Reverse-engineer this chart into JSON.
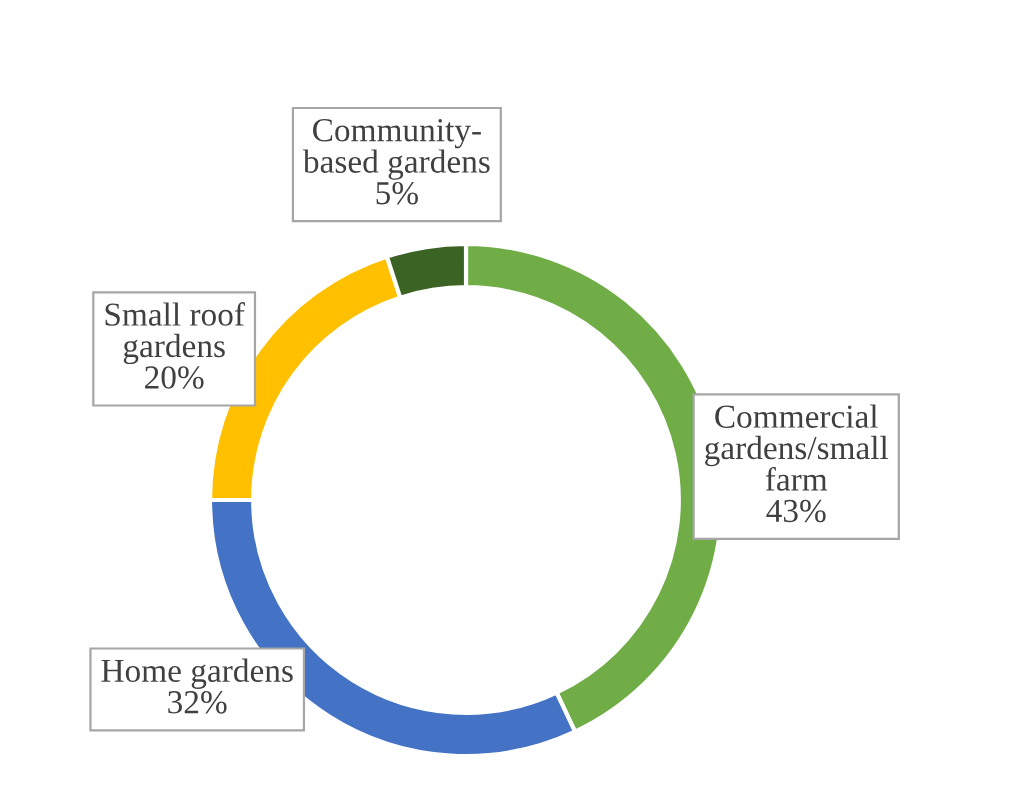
{
  "chart_data": {
    "type": "donut",
    "categories": [
      "Commercial\ngardens/small\nfarm",
      "Home gardens",
      "Small roof\ngardens",
      "Community-\nbased gardens"
    ],
    "values": [
      43,
      32,
      20,
      5
    ],
    "value_labels": [
      "43%",
      "32%",
      "20%",
      "5%"
    ],
    "colors": [
      "#70ad47",
      "#4472c4",
      "#ffc000",
      "#3b6323"
    ],
    "legend": false
  }
}
